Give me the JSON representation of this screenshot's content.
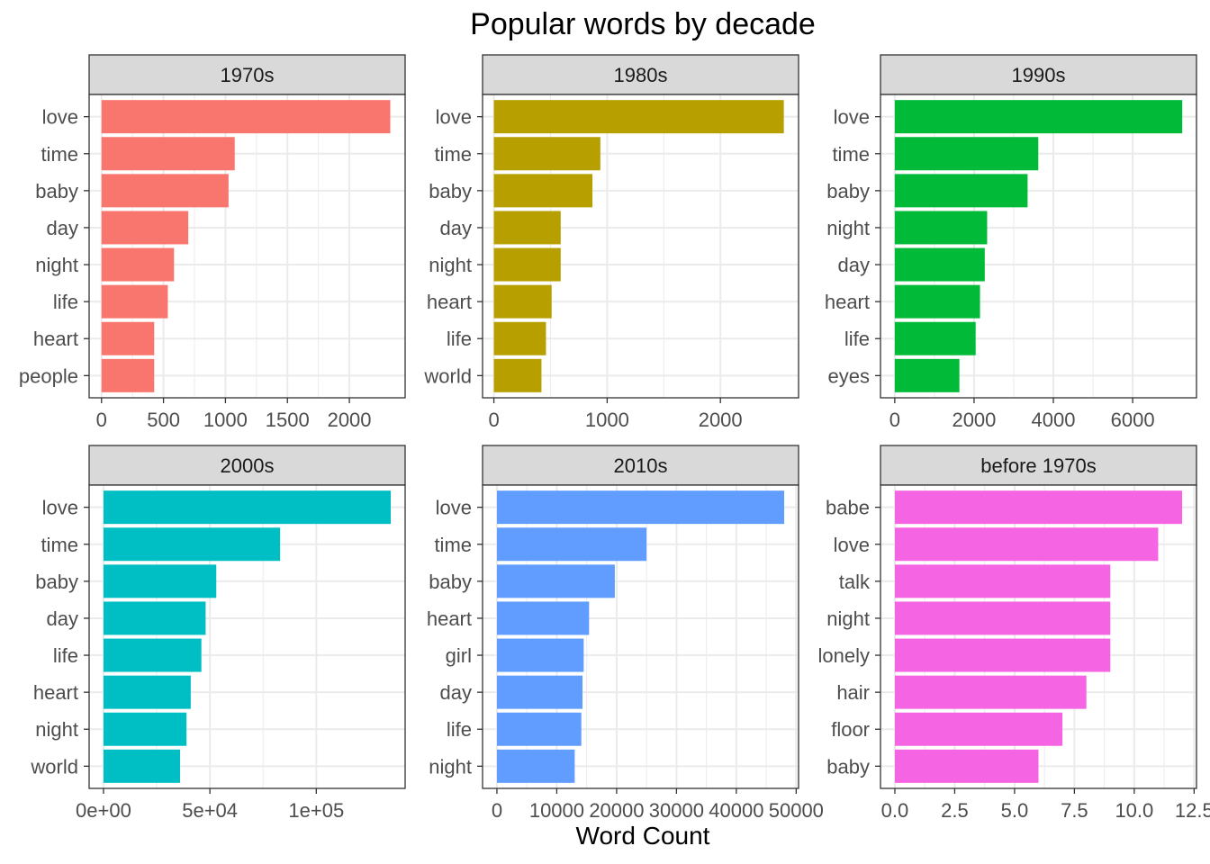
{
  "title": "Popular words by decade",
  "xlabel": "Word Count",
  "chart_data": {
    "type": "bar",
    "title": "Popular words by decade",
    "xlabel": "Word Count",
    "ylabel": "",
    "orientation": "horizontal",
    "grid": true,
    "legend": "none",
    "panels": [
      {
        "name": "1970s",
        "color": "#F8766D",
        "categories": [
          "love",
          "time",
          "baby",
          "day",
          "night",
          "life",
          "heart",
          "people"
        ],
        "values": [
          2330,
          1075,
          1025,
          700,
          585,
          535,
          425,
          425
        ],
        "xlim": [
          -100,
          2450
        ],
        "xticks": [
          0,
          500,
          1000,
          1500,
          2000
        ],
        "xtick_labels": [
          "0",
          "500",
          "1000",
          "1500",
          "2000"
        ]
      },
      {
        "name": "1980s",
        "color": "#B79F00",
        "categories": [
          "love",
          "time",
          "baby",
          "day",
          "night",
          "heart",
          "life",
          "world"
        ],
        "values": [
          2560,
          940,
          870,
          590,
          590,
          510,
          460,
          420
        ],
        "xlim": [
          -100,
          2690
        ],
        "xticks": [
          0,
          1000,
          2000
        ],
        "xtick_labels": [
          "0",
          "1000",
          "2000"
        ]
      },
      {
        "name": "1990s",
        "color": "#00BA38",
        "categories": [
          "love",
          "time",
          "baby",
          "night",
          "day",
          "heart",
          "life",
          "eyes"
        ],
        "values": [
          7250,
          3620,
          3350,
          2330,
          2270,
          2150,
          2040,
          1630
        ],
        "xlim": [
          -360,
          7610
        ],
        "xticks": [
          0,
          2000,
          4000,
          6000
        ],
        "xtick_labels": [
          "0",
          "2000",
          "4000",
          "6000"
        ]
      },
      {
        "name": "2000s",
        "color": "#00BFC4",
        "categories": [
          "love",
          "time",
          "baby",
          "day",
          "life",
          "heart",
          "night",
          "world"
        ],
        "values": [
          135000,
          83000,
          53000,
          48000,
          46000,
          41000,
          39000,
          36000
        ],
        "xlim": [
          -6750,
          141750
        ],
        "xticks": [
          0,
          50000,
          100000
        ],
        "xtick_labels": [
          "0e+00",
          "5e+04",
          "1e+05"
        ]
      },
      {
        "name": "2010s",
        "color": "#619CFF",
        "categories": [
          "love",
          "time",
          "baby",
          "heart",
          "girl",
          "day",
          "life",
          "night"
        ],
        "values": [
          48000,
          25000,
          19700,
          15400,
          14500,
          14300,
          14100,
          13000
        ],
        "xlim": [
          -2400,
          50400
        ],
        "xticks": [
          0,
          10000,
          20000,
          30000,
          40000,
          50000
        ],
        "xtick_labels": [
          "0",
          "10000",
          "20000",
          "30000",
          "40000",
          "50000"
        ]
      },
      {
        "name": "before 1970s",
        "color": "#F564E3",
        "categories": [
          "babe",
          "love",
          "talk",
          "night",
          "lonely",
          "hair",
          "floor",
          "baby"
        ],
        "values": [
          12,
          11,
          9,
          9,
          9,
          8,
          7,
          6
        ],
        "xlim": [
          -0.6,
          12.6
        ],
        "xticks": [
          0,
          2.5,
          5,
          7.5,
          10,
          12.5
        ],
        "xtick_labels": [
          "0.0",
          "2.5",
          "5.0",
          "7.5",
          "10.0",
          "12.5"
        ]
      }
    ]
  }
}
